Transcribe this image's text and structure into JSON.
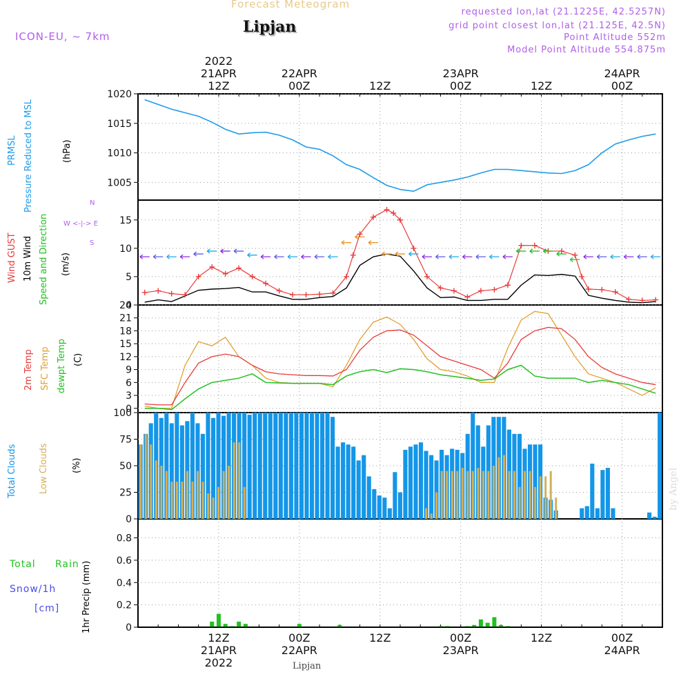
{
  "header": {
    "title": "Forecast Meteogram",
    "location": "Lipjan",
    "model": "ICON-EU, ~ 7km",
    "info_lines": [
      "requested lon,lat (21.1225E, 42.5257N)",
      "grid point closest lon,lat (21.125E, 42.5N)",
      "Point Altitude 552m",
      "Model Point Altitude 554.875m"
    ],
    "footer_location": "Lipjan",
    "watermark": "by Angel"
  },
  "time_axis": {
    "top_labels": [
      {
        "t": 12,
        "lines": [
          "2022",
          "21APR",
          "12Z"
        ]
      },
      {
        "t": 24,
        "lines": [
          "22APR",
          "00Z"
        ]
      },
      {
        "t": 36,
        "lines": [
          "12Z"
        ]
      },
      {
        "t": 48,
        "lines": [
          "23APR",
          "00Z"
        ]
      },
      {
        "t": 60,
        "lines": [
          "12Z"
        ]
      },
      {
        "t": 72,
        "lines": [
          "24APR",
          "00Z"
        ]
      }
    ],
    "bottom_labels": [
      {
        "t": 12,
        "lines": [
          "12Z",
          "21APR",
          "2022"
        ]
      },
      {
        "t": 24,
        "lines": [
          "00Z",
          "22APR"
        ]
      },
      {
        "t": 36,
        "lines": [
          "12Z"
        ]
      },
      {
        "t": 48,
        "lines": [
          "00Z",
          "23APR"
        ]
      },
      {
        "t": 60,
        "lines": [
          "12Z"
        ]
      },
      {
        "t": 72,
        "lines": [
          "00Z",
          "24APR"
        ]
      }
    ]
  },
  "panel_labels": {
    "pressure": {
      "name1": "PRMSL",
      "name2": "Pressure Reduced to MSL",
      "unit": "(hPa)"
    },
    "wind": {
      "gust": "Wind GUST",
      "wind10": "10m Wind",
      "dir": "Speed and Direction",
      "unit": "(m/s)",
      "compass_n": "N",
      "compass_row": "W <-|-> E",
      "compass_s": "S"
    },
    "temp": {
      "t2m": "2m Temp",
      "sfc": "SFC Temp",
      "dewpt": "dewpt Temp",
      "unit": "(C)"
    },
    "clouds": {
      "total": "Total Clouds",
      "low": "Low Clouds",
      "unit": "(%)"
    },
    "precip": {
      "axis": "1hr Precip (mm)",
      "rain_a": "Total",
      "rain_b": "Rain",
      "snow": "Snow/1h",
      "snow_unit": "[cm]"
    }
  },
  "colors": {
    "pressure": "#1e9be8",
    "gust": "#e83a3a",
    "wind10": "#000000",
    "t2m": "#e83a3a",
    "sfc": "#e0a030",
    "dewpt": "#22c022",
    "total_clouds": "#1496e8",
    "low_clouds": "#d2b05a",
    "rain": "#22c022",
    "label_purple": "#b05ee8"
  },
  "chart_data": [
    {
      "type": "line",
      "panel": "pressure",
      "ylabel": "(hPa)",
      "ylim": [
        1002,
        1020
      ],
      "yticks": [
        1005,
        1010,
        1015,
        1020
      ],
      "series": [
        {
          "name": "PRMSL",
          "x": [
            1,
            3,
            5,
            7,
            9,
            11,
            13,
            15,
            17,
            19,
            21,
            23,
            25,
            27,
            29,
            31,
            33,
            35,
            37,
            39,
            41,
            43,
            45,
            47,
            49,
            51,
            53,
            55,
            57,
            59,
            61,
            63,
            65,
            67,
            69,
            71,
            73,
            75,
            77
          ],
          "values": [
            1019,
            1018.2,
            1017.4,
            1016.8,
            1016.2,
            1015.2,
            1014,
            1013.2,
            1013.4,
            1013.5,
            1013,
            1012.2,
            1011,
            1010.6,
            1009.5,
            1008,
            1007.2,
            1005.8,
            1004.5,
            1003.8,
            1003.5,
            1004.6,
            1005,
            1005.4,
            1005.9,
            1006.6,
            1007.2,
            1007.2,
            1007,
            1006.8,
            1006.6,
            1006.5,
            1007,
            1008,
            1010,
            1011.5,
            1012.2,
            1012.8,
            1013.2
          ]
        }
      ]
    },
    {
      "type": "line",
      "panel": "wind",
      "ylabel": "(m/s)",
      "ylim": [
        0,
        18.5
      ],
      "yticks": [
        0,
        5,
        10,
        15
      ],
      "series": [
        {
          "name": "Wind GUST",
          "x": [
            1,
            3,
            5,
            7,
            9,
            11,
            13,
            15,
            17,
            19,
            21,
            23,
            25,
            27,
            29,
            31,
            32,
            33,
            35,
            37,
            38,
            39,
            41,
            43,
            45,
            47,
            49,
            51,
            53,
            55,
            57,
            59,
            61,
            63,
            65,
            66,
            67,
            69,
            71,
            73,
            75,
            77
          ],
          "values": [
            2.2,
            2.5,
            2,
            1.8,
            5,
            6.7,
            5.5,
            6.5,
            5,
            3.8,
            2.5,
            1.8,
            1.8,
            1.9,
            2.1,
            5,
            8.8,
            12.5,
            15.5,
            16.8,
            16.2,
            15,
            10,
            5,
            3,
            2.5,
            1.4,
            2.5,
            2.7,
            3.5,
            10.5,
            10.5,
            9.5,
            9.5,
            8.8,
            5,
            2.8,
            2.7,
            2.3,
            1,
            0.8,
            0.9
          ]
        },
        {
          "name": "10m Wind",
          "x": [
            1,
            3,
            5,
            7,
            9,
            11,
            13,
            15,
            17,
            19,
            21,
            23,
            25,
            27,
            29,
            31,
            33,
            35,
            37,
            39,
            41,
            43,
            45,
            47,
            49,
            51,
            53,
            55,
            57,
            59,
            61,
            63,
            65,
            67,
            69,
            71,
            73,
            75,
            77
          ],
          "values": [
            0.5,
            0.9,
            0.6,
            1.6,
            2.6,
            2.8,
            2.9,
            3.1,
            2.3,
            2.3,
            1.6,
            1,
            1,
            1.3,
            1.5,
            3,
            7,
            8.5,
            9,
            8.6,
            6,
            3,
            1.3,
            1.4,
            0.8,
            0.8,
            1,
            1,
            3.5,
            5.3,
            5.2,
            5.4,
            5.1,
            1.7,
            1.2,
            0.8,
            0.5,
            0.4,
            0.6
          ]
        }
      ]
    },
    {
      "type": "line",
      "panel": "temp",
      "ylabel": "(C)",
      "ylim": [
        -1,
        24
      ],
      "yticks": [
        0,
        3,
        6,
        9,
        12,
        15,
        18,
        21,
        24
      ],
      "series": [
        {
          "name": "2m Temp",
          "x": [
            1,
            3,
            5,
            7,
            9,
            11,
            13,
            15,
            17,
            19,
            21,
            23,
            25,
            27,
            29,
            31,
            33,
            35,
            37,
            39,
            41,
            43,
            45,
            47,
            49,
            51,
            53,
            55,
            57,
            59,
            61,
            63,
            65,
            67,
            69,
            71,
            73,
            75,
            77
          ],
          "values": [
            1,
            0.8,
            0.8,
            6,
            10.5,
            12,
            12.6,
            12,
            10,
            8.5,
            8,
            7.8,
            7.6,
            7.6,
            7.5,
            9,
            13.5,
            16.5,
            18,
            18.2,
            17,
            14.5,
            12,
            11,
            10,
            9,
            7,
            10.5,
            16,
            18,
            18.8,
            18.5,
            16,
            12,
            9.5,
            8,
            7,
            6,
            5.5
          ]
        },
        {
          "name": "SFC Temp",
          "x": [
            1,
            3,
            5,
            7,
            9,
            11,
            13,
            15,
            17,
            19,
            21,
            23,
            25,
            27,
            29,
            31,
            33,
            35,
            37,
            39,
            41,
            43,
            45,
            47,
            49,
            51,
            53,
            55,
            57,
            59,
            61,
            63,
            65,
            67,
            69,
            71,
            73,
            75,
            77
          ],
          "values": [
            0.5,
            0,
            0,
            10,
            15.5,
            14.5,
            16.5,
            12,
            10,
            7,
            6,
            5.8,
            5.8,
            5.8,
            5,
            10,
            16,
            20,
            21.2,
            19.5,
            16,
            11.5,
            9,
            8.5,
            7.5,
            6,
            6,
            14,
            20.5,
            22.5,
            22,
            17,
            12,
            8,
            7,
            6,
            4.5,
            3,
            4.8
          ]
        },
        {
          "name": "dewpt Temp",
          "x": [
            1,
            3,
            5,
            7,
            9,
            11,
            13,
            15,
            17,
            19,
            21,
            23,
            25,
            27,
            29,
            31,
            33,
            35,
            37,
            39,
            41,
            43,
            45,
            47,
            49,
            51,
            53,
            55,
            57,
            59,
            61,
            63,
            65,
            67,
            69,
            71,
            73,
            75,
            77
          ],
          "values": [
            0,
            0,
            -0.3,
            2.2,
            4.5,
            6,
            6.5,
            7,
            8,
            6,
            5.9,
            5.8,
            5.8,
            5.8,
            5.5,
            7.5,
            8.5,
            9,
            8.3,
            9.2,
            9,
            8.5,
            7.8,
            7.4,
            7,
            6.5,
            6.8,
            9,
            10,
            7.5,
            7,
            7,
            7,
            6,
            6.5,
            6,
            5.5,
            4.5,
            3.5
          ]
        }
      ]
    },
    {
      "type": "bar",
      "panel": "clouds",
      "ylabel": "(%)",
      "ylim": [
        0,
        100
      ],
      "yticks": [
        0,
        25,
        50,
        75,
        100
      ],
      "x_start": 0,
      "x_step": 1,
      "series": [
        {
          "name": "Total Clouds",
          "values": [
            70,
            80,
            90,
            100,
            95,
            100,
            90,
            100,
            88,
            92,
            100,
            90,
            80,
            100,
            95,
            100,
            97,
            100,
            100,
            100,
            100,
            98,
            100,
            100,
            100,
            100,
            100,
            100,
            100,
            100,
            100,
            100,
            100,
            100,
            100,
            100,
            100,
            96,
            68,
            72,
            70,
            68,
            55,
            60,
            40,
            28,
            22,
            20,
            10,
            44,
            25,
            65,
            68,
            70,
            72,
            64,
            60,
            55,
            65,
            60,
            66,
            65,
            62,
            80,
            100,
            88,
            68,
            88,
            96,
            96,
            96,
            84,
            80,
            80,
            66,
            70,
            70,
            70,
            20,
            18,
            8,
            0,
            0,
            0,
            0,
            10,
            12,
            52,
            10,
            46,
            48,
            10,
            0,
            0,
            0,
            0,
            0,
            0,
            6,
            2,
            100
          ]
        },
        {
          "name": "Low Clouds",
          "values": [
            70,
            80,
            70,
            55,
            50,
            45,
            35,
            35,
            35,
            45,
            35,
            45,
            35,
            24,
            20,
            30,
            45,
            50,
            72,
            72,
            30,
            0,
            0,
            0,
            0,
            0,
            0,
            0,
            0,
            0,
            0,
            0,
            0,
            0,
            0,
            0,
            0,
            0,
            0,
            0,
            0,
            0,
            0,
            0,
            0,
            0,
            0,
            0,
            0,
            0,
            0,
            0,
            0,
            0,
            0,
            10,
            5,
            25,
            45,
            45,
            45,
            45,
            48,
            45,
            45,
            48,
            45,
            45,
            50,
            58,
            60,
            45,
            45,
            30,
            45,
            45,
            30,
            40,
            40,
            45,
            20,
            0,
            0,
            0,
            0,
            0,
            0,
            0,
            0,
            0,
            0,
            0,
            0,
            0,
            0,
            0,
            0,
            0,
            0,
            0,
            0
          ]
        }
      ]
    },
    {
      "type": "bar",
      "panel": "precip",
      "ylabel": "1hr Precip (mm)",
      "ylim": [
        0,
        0.97
      ],
      "yticks": [
        0,
        0.2,
        0.4,
        0.6,
        0.8
      ],
      "series": [
        {
          "name": "Total Rain",
          "x": [
            11,
            12,
            13,
            14,
            15,
            16,
            24,
            30,
            45,
            46,
            49,
            50,
            51,
            52,
            53,
            54,
            55
          ],
          "values": [
            0.05,
            0.12,
            0.03,
            0.01,
            0.05,
            0.03,
            0.03,
            0.02,
            0.01,
            0.01,
            0.01,
            0.02,
            0.07,
            0.04,
            0.09,
            0.02,
            0.01
          ]
        }
      ]
    },
    {
      "type": "scatter",
      "panel": "wind_direction_arrows",
      "note": "",
      "x": [
        1,
        3,
        5,
        7,
        9,
        11,
        13,
        15,
        17,
        19,
        21,
        23,
        25,
        27,
        29,
        31,
        33,
        35,
        37,
        39,
        41,
        43,
        45,
        47,
        49,
        51,
        53,
        55,
        57,
        59,
        61,
        63,
        65,
        67,
        69,
        71,
        73,
        75,
        77
      ],
      "values": [
        8.5,
        8.5,
        8.5,
        8.5,
        9,
        9.5,
        9.5,
        9.5,
        8.8,
        8.5,
        8.5,
        8.5,
        8.5,
        8.5,
        8.5,
        11,
        12,
        11,
        9,
        9,
        9,
        8.5,
        8.5,
        8.5,
        8.5,
        8.5,
        8.5,
        8.5,
        9.5,
        9.5,
        9.5,
        9,
        8,
        8.5,
        8.5,
        8.5,
        8.5,
        8.5,
        8.5
      ]
    }
  ]
}
